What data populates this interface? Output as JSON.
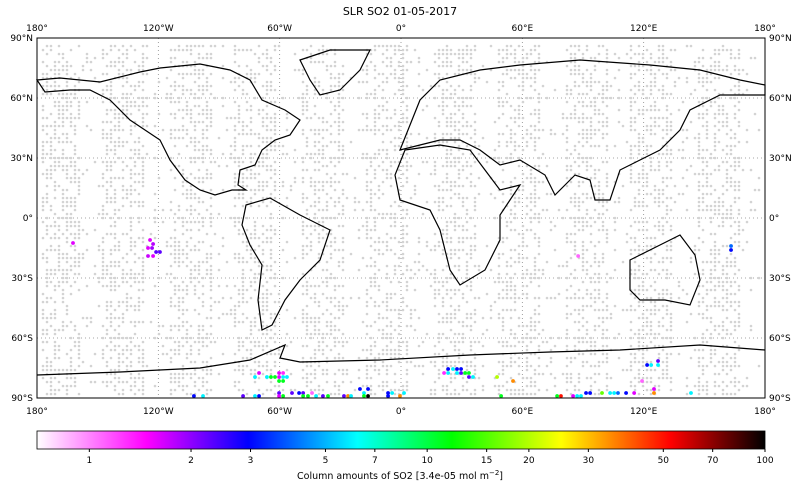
{
  "chart_data": {
    "type": "scatter",
    "title": "SLR SO2 01-05-2017",
    "projection": "equirectangular world map with coastlines",
    "xlim": [
      -180,
      180
    ],
    "ylim": [
      -90,
      90
    ],
    "grid": true,
    "x_ticks": [
      {
        "value": -180,
        "label": "180°"
      },
      {
        "value": -120,
        "label": "120°W"
      },
      {
        "value": -60,
        "label": "60°W"
      },
      {
        "value": 0,
        "label": "0°"
      },
      {
        "value": 60,
        "label": "60°E"
      },
      {
        "value": 120,
        "label": "120°E"
      },
      {
        "value": 180,
        "label": "180°"
      }
    ],
    "y_ticks": [
      {
        "value": 90,
        "label": "90°N"
      },
      {
        "value": 60,
        "label": "60°N"
      },
      {
        "value": 30,
        "label": "30°N"
      },
      {
        "value": 0,
        "label": "0°"
      },
      {
        "value": -30,
        "label": "30°S"
      },
      {
        "value": -60,
        "label": "60°S"
      },
      {
        "value": -90,
        "label": "90°S"
      }
    ],
    "colorbar": {
      "label": "Column amounts of SO2 [3.4e-05 mol m",
      "label_sup": "−2",
      "label_end": "]",
      "scale": "log",
      "range": [
        0.7,
        100
      ],
      "ticks": [
        "1",
        "2",
        "3",
        "5",
        "7",
        "10",
        "15",
        "20",
        "30",
        "50",
        "70",
        "100"
      ],
      "colormap": [
        "#ffffff",
        "#ff00ff",
        "#0000ff",
        "#00ffff",
        "#00ff00",
        "#ffff00",
        "#ff0000",
        "#000000"
      ]
    },
    "no_detection_color": "#d3d3d3",
    "points": [
      {
        "lon": -162.2,
        "lat": -12.5,
        "value": 1.6
      },
      {
        "lon": -124.1,
        "lat": -11,
        "value": 1.6
      },
      {
        "lon": -122.6,
        "lat": -13,
        "value": 1.8
      },
      {
        "lon": -125.1,
        "lat": -15,
        "value": 1.6
      },
      {
        "lon": -123.1,
        "lat": -15,
        "value": 1.9
      },
      {
        "lon": -121.1,
        "lat": -17,
        "value": 2.3
      },
      {
        "lon": -119.2,
        "lat": -17,
        "value": 2.3
      },
      {
        "lon": -125.1,
        "lat": -19,
        "value": 1.7
      },
      {
        "lon": -122.6,
        "lat": -19,
        "value": 1.6
      },
      {
        "lon": -70.2,
        "lat": -77.5,
        "value": 1.6
      },
      {
        "lon": -72.2,
        "lat": -79.5,
        "value": 6
      },
      {
        "lon": -66.3,
        "lat": -79.5,
        "value": 6
      },
      {
        "lon": -64.3,
        "lat": -79.5,
        "value": 11
      },
      {
        "lon": -62.3,
        "lat": -79.5,
        "value": 11
      },
      {
        "lon": -60.3,
        "lat": -77.5,
        "value": 1.6
      },
      {
        "lon": -58.3,
        "lat": -77.5,
        "value": 1.3
      },
      {
        "lon": -60.3,
        "lat": -79.5,
        "value": 1.6
      },
      {
        "lon": -58.3,
        "lat": -79.5,
        "value": 6
      },
      {
        "lon": -56.4,
        "lat": -79.5,
        "value": 6
      },
      {
        "lon": -60.3,
        "lat": -81.5,
        "value": 11
      },
      {
        "lon": -58.3,
        "lat": -81.5,
        "value": 11
      },
      {
        "lon": -102.4,
        "lat": -89.5,
        "value": 3
      },
      {
        "lon": -97.9,
        "lat": -89.5,
        "value": 6
      },
      {
        "lon": -78.1,
        "lat": -89.5,
        "value": 2.3
      },
      {
        "lon": -72.2,
        "lat": -89.5,
        "value": 6
      },
      {
        "lon": -70.2,
        "lat": -89.5,
        "value": 3
      },
      {
        "lon": -60.3,
        "lat": -87.5,
        "value": 2.3
      },
      {
        "lon": -60.3,
        "lat": -89.5,
        "value": 1.6
      },
      {
        "lon": -58.3,
        "lat": -89.5,
        "value": 11
      },
      {
        "lon": -53.9,
        "lat": -87.5,
        "value": 2.3
      },
      {
        "lon": -50.4,
        "lat": -87.5,
        "value": 3
      },
      {
        "lon": -48.4,
        "lat": -87.5,
        "value": 2.3
      },
      {
        "lon": -48.4,
        "lat": -89.5,
        "value": 11
      },
      {
        "lon": -46.0,
        "lat": -89.5,
        "value": 11
      },
      {
        "lon": -44.0,
        "lat": -87.5,
        "value": 1.1
      },
      {
        "lon": -42.0,
        "lat": -89.5,
        "value": 6
      },
      {
        "lon": -38.6,
        "lat": -89.5,
        "value": 2.3
      },
      {
        "lon": -36.1,
        "lat": -89.5,
        "value": 11
      },
      {
        "lon": -28.2,
        "lat": -89.5,
        "value": 2.3
      },
      {
        "lon": -26.2,
        "lat": -89.5,
        "value": 35
      },
      {
        "lon": -24.7,
        "lat": -89.5,
        "value": 6
      },
      {
        "lon": -20.3,
        "lat": -85.5,
        "value": 3
      },
      {
        "lon": -18.3,
        "lat": -87.5,
        "value": 6
      },
      {
        "lon": -18.3,
        "lat": -89.5,
        "value": 11
      },
      {
        "lon": -16.3,
        "lat": -85.5,
        "value": 3
      },
      {
        "lon": -16.3,
        "lat": -89.5,
        "value": 100
      },
      {
        "lon": -6.4,
        "lat": -87.5,
        "value": 3
      },
      {
        "lon": -4.4,
        "lat": -87.5,
        "value": 6
      },
      {
        "lon": -6.4,
        "lat": -89.5,
        "value": 3
      },
      {
        "lon": -0.5,
        "lat": -89.5,
        "value": 35
      },
      {
        "lon": 1.5,
        "lat": -87.5,
        "value": 6
      },
      {
        "lon": 23.3,
        "lat": -75.5,
        "value": 3
      },
      {
        "lon": 25.7,
        "lat": -75.5,
        "value": 6
      },
      {
        "lon": 27.7,
        "lat": -75.5,
        "value": 3
      },
      {
        "lon": 29.7,
        "lat": -75.5,
        "value": 3
      },
      {
        "lon": 21.3,
        "lat": -77.5,
        "value": 1.3
      },
      {
        "lon": 23.3,
        "lat": -77.5,
        "value": 6
      },
      {
        "lon": 27.7,
        "lat": -77.5,
        "value": 6
      },
      {
        "lon": 29.7,
        "lat": -77.5,
        "value": 2.3
      },
      {
        "lon": 31.7,
        "lat": -77.5,
        "value": 11
      },
      {
        "lon": 33.6,
        "lat": -77.5,
        "value": 11
      },
      {
        "lon": 33.6,
        "lat": -79.5,
        "value": 2.3
      },
      {
        "lon": 35.6,
        "lat": -79.5,
        "value": 6
      },
      {
        "lon": 47.5,
        "lat": -79.5,
        "value": 20
      },
      {
        "lon": 55.4,
        "lat": -81.5,
        "value": 35
      },
      {
        "lon": 49.5,
        "lat": -89.5,
        "value": 11
      },
      {
        "lon": 77.2,
        "lat": -89.5,
        "value": 11
      },
      {
        "lon": 79.1,
        "lat": -89.5,
        "value": 50
      },
      {
        "lon": 85.1,
        "lat": -89.5,
        "value": 1.6
      },
      {
        "lon": 87.1,
        "lat": -89.5,
        "value": 6
      },
      {
        "lon": 89.0,
        "lat": -89.5,
        "value": 6
      },
      {
        "lon": 91.5,
        "lat": -87.5,
        "value": 3
      },
      {
        "lon": 93.5,
        "lat": -87.5,
        "value": 3
      },
      {
        "lon": 99.4,
        "lat": -87.5,
        "value": 16
      },
      {
        "lon": 103.4,
        "lat": -87.5,
        "value": 6
      },
      {
        "lon": 105.4,
        "lat": -87.5,
        "value": 6
      },
      {
        "lon": 107.3,
        "lat": -87.5,
        "value": 4
      },
      {
        "lon": 111.3,
        "lat": -87.5,
        "value": 3
      },
      {
        "lon": 115.3,
        "lat": -87.5,
        "value": 1.6
      },
      {
        "lon": 119.2,
        "lat": -81.5,
        "value": 1.1
      },
      {
        "lon": 121.7,
        "lat": -73.5,
        "value": 3
      },
      {
        "lon": 123.7,
        "lat": -73.5,
        "value": 6
      },
      {
        "lon": 127.1,
        "lat": -71.5,
        "value": 2.3
      },
      {
        "lon": 127.1,
        "lat": -73.5,
        "value": 6
      },
      {
        "lon": 125.1,
        "lat": -85.5,
        "value": 1.6
      },
      {
        "lon": 125.1,
        "lat": -87.5,
        "value": 35
      },
      {
        "lon": 143.4,
        "lat": -87.5,
        "value": 6
      },
      {
        "lon": 163.2,
        "lat": -14,
        "value": 4
      },
      {
        "lon": 163.2,
        "lat": -16,
        "value": 3
      },
      {
        "lon": 87.6,
        "lat": -19,
        "value": 1.1
      }
    ]
  }
}
